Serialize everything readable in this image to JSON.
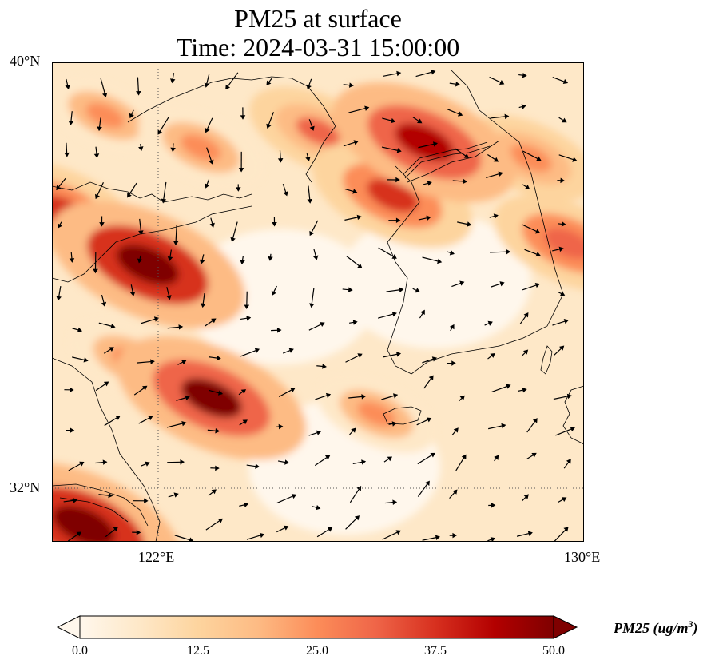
{
  "title": {
    "line1": "PM25 at surface",
    "line2": "Time: 2024-03-31 15:00:00"
  },
  "axes": {
    "lat_ticks": [
      "40°N",
      "32°N"
    ],
    "lon_ticks": [
      "122°E",
      "130°E"
    ],
    "lat_range": [
      31,
      40
    ],
    "lon_range": [
      120,
      130
    ],
    "gridlines": "dotted"
  },
  "colorbar": {
    "label_main": "PM25 (ug/m",
    "label_sup": "3",
    "label_close": ")",
    "ticks": [
      "0.0",
      "12.5",
      "25.0",
      "37.5",
      "50.0"
    ],
    "min": 0,
    "max": 50,
    "extend": "both",
    "colormap": "OrRd",
    "colors": [
      "#fff7ec",
      "#fee8c8",
      "#fdd49e",
      "#fdbb84",
      "#fc8d59",
      "#ef6548",
      "#d7301f",
      "#b30000",
      "#7f0000"
    ]
  },
  "map_data": {
    "field": "PM25",
    "hotspots": [
      {
        "lon": 121.8,
        "lat": 36.2,
        "value": 50
      },
      {
        "lon": 123.0,
        "lat": 33.7,
        "value": 48
      },
      {
        "lon": 120.6,
        "lat": 31.3,
        "value": 50
      },
      {
        "lon": 127.0,
        "lat": 38.5,
        "value": 46
      },
      {
        "lon": 126.4,
        "lat": 37.5,
        "value": 38
      },
      {
        "lon": 129.7,
        "lat": 36.6,
        "value": 34
      },
      {
        "lon": 120.2,
        "lat": 37.2,
        "value": 36
      },
      {
        "lon": 122.8,
        "lat": 38.4,
        "value": 26
      },
      {
        "lon": 125.0,
        "lat": 38.7,
        "value": 30
      },
      {
        "lon": 129.0,
        "lat": 38.2,
        "value": 28
      },
      {
        "lon": 121.0,
        "lat": 39.0,
        "value": 24
      },
      {
        "lon": 121.5,
        "lat": 34.4,
        "value": 26
      },
      {
        "lon": 126.1,
        "lat": 33.4,
        "value": 24
      }
    ],
    "clean_areas": [
      {
        "lon": 124.3,
        "lat": 35.6
      },
      {
        "lon": 127.2,
        "lat": 35.9
      },
      {
        "lon": 125.5,
        "lat": 32.4
      }
    ]
  }
}
